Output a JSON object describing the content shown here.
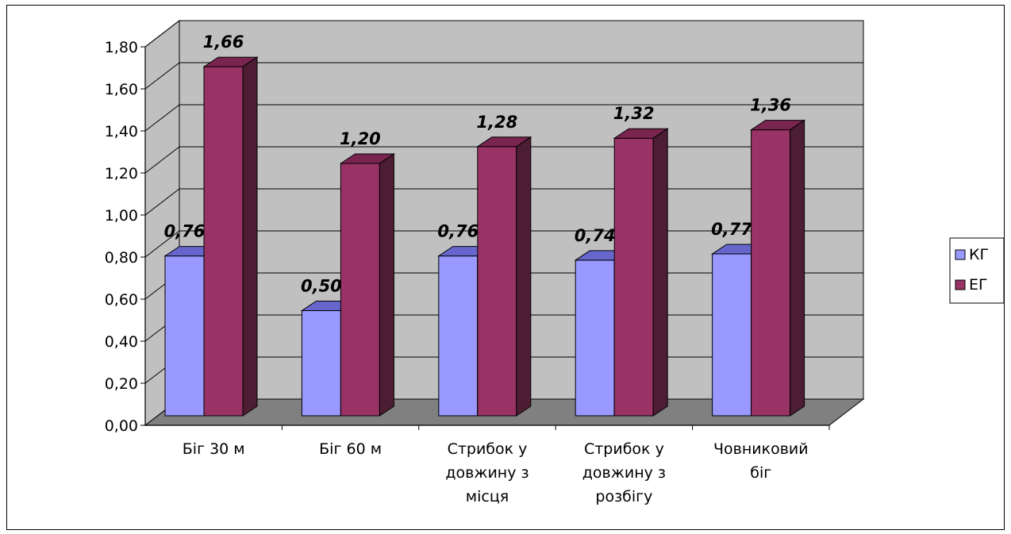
{
  "chart_data": {
    "type": "bar",
    "categories": [
      [
        "Біг 30 м"
      ],
      [
        "Біг 60 м"
      ],
      [
        "Стрибок у",
        "довжину з",
        "місця"
      ],
      [
        "Стрибок у",
        "довжину з",
        "розбігу"
      ],
      [
        "Човниковий",
        "біг"
      ]
    ],
    "series": [
      {
        "name": "КГ",
        "values": [
          0.76,
          0.5,
          0.76,
          0.74,
          0.77
        ],
        "labels": [
          "0,76",
          "0,50",
          "0,76",
          "0,74",
          "0,77"
        ],
        "color": "#9999ff",
        "top_color": "#6666cc",
        "side_color": "#5a5ab0"
      },
      {
        "name": "ЕГ",
        "values": [
          1.66,
          1.2,
          1.28,
          1.32,
          1.36
        ],
        "labels": [
          "1,66",
          "1,20",
          "1,28",
          "1,32",
          "1,36"
        ],
        "color": "#993366",
        "top_color": "#7a2450",
        "side_color": "#4d1d33"
      }
    ],
    "ylim": [
      0,
      1.8
    ],
    "yticks": [
      "0,00",
      "0,20",
      "0,40",
      "0,60",
      "0,80",
      "1,00",
      "1,20",
      "1,40",
      "1,60",
      "1,80"
    ],
    "grid": true,
    "legend": "right",
    "wall_color": "#c0c0c0",
    "floor_color": "#808080"
  }
}
